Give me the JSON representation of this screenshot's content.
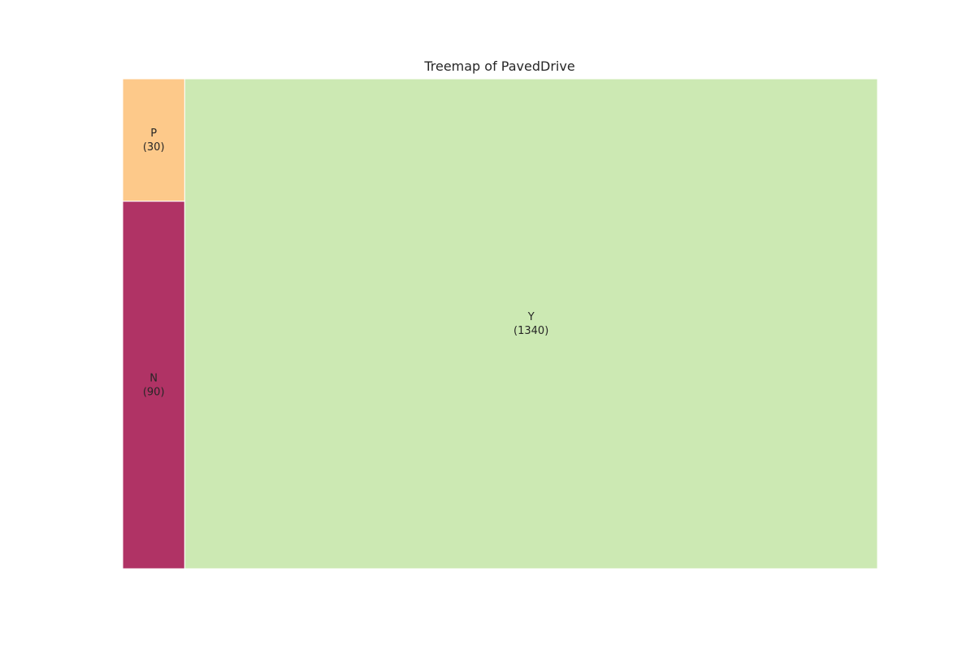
{
  "chart_data": {
    "type": "treemap",
    "title": "Treemap of PavedDrive",
    "categories": [
      "P",
      "N",
      "Y"
    ],
    "values": [
      30,
      90,
      1340
    ],
    "labels": [
      "P\n(30)",
      "N\n(90)",
      "Y\n(1340)"
    ],
    "colors": [
      "#fdc98a",
      "#b03365",
      "#cce9b3"
    ],
    "tile_border_color": "#ffffff",
    "grid": false,
    "legend": "none"
  }
}
